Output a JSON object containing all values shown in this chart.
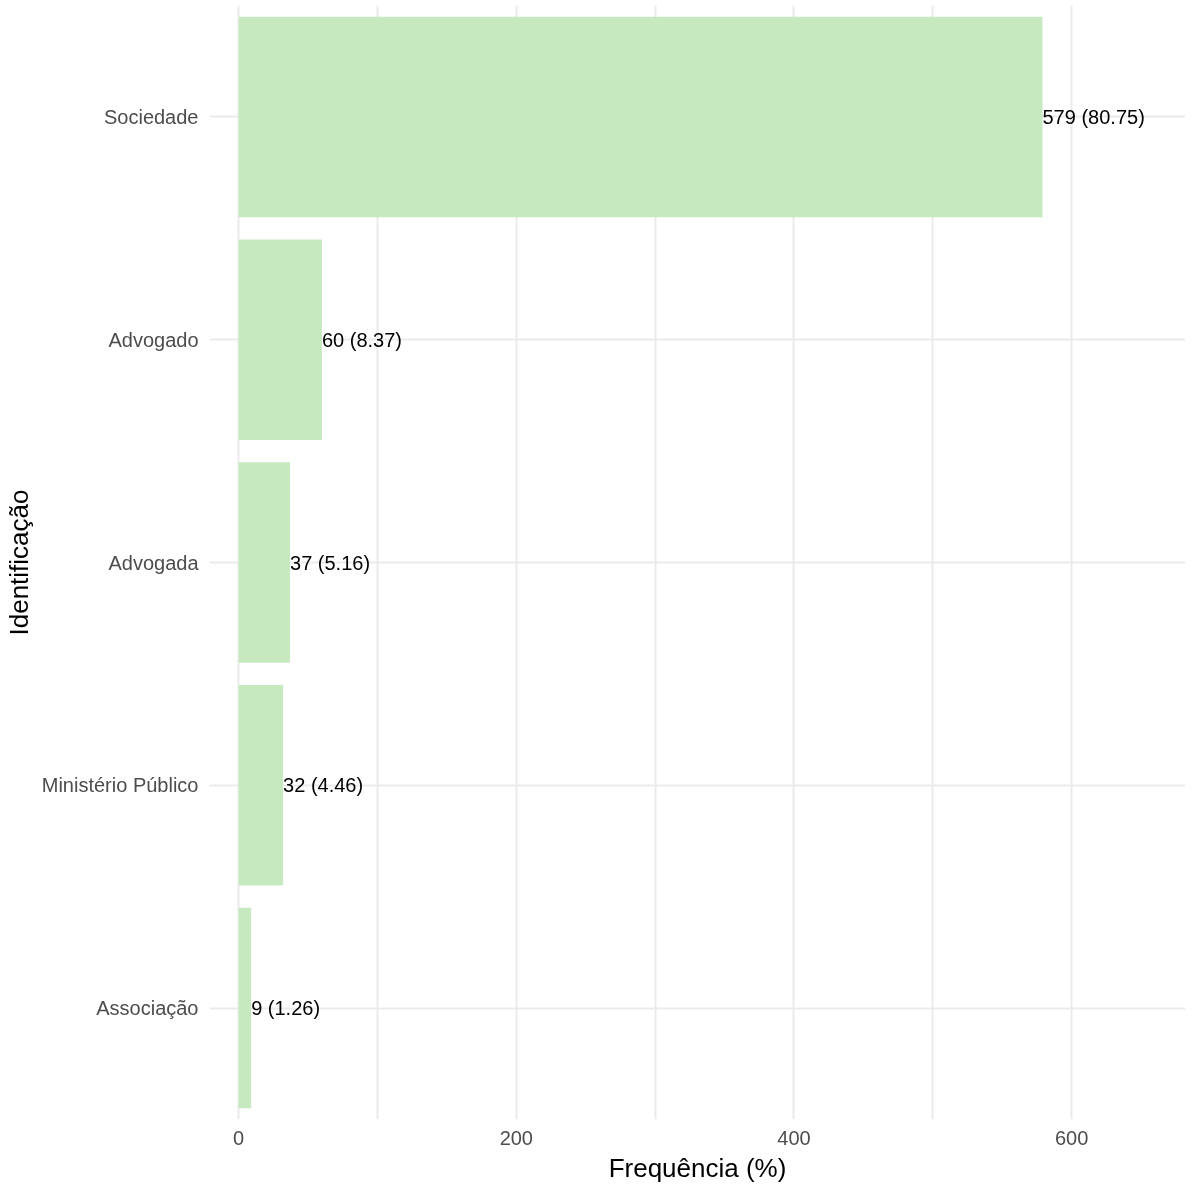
{
  "chart_data": {
    "type": "bar",
    "orientation": "horizontal",
    "xlabel": "Frequência (%)",
    "ylabel": "Identificação",
    "categories": [
      "Sociedade",
      "Advogado",
      "Advogada",
      "Ministério Público",
      "Associação"
    ],
    "values": [
      579,
      60,
      37,
      32,
      9
    ],
    "value_labels": [
      "579 (80.75)",
      "60 (8.37)",
      "37 (5.16)",
      "32 (4.46)",
      "9 (1.26)"
    ],
    "color": "#c7e9c0",
    "xlim": [
      -21,
      682
    ],
    "xticks": [
      0,
      {
        "value": 100,
        "label": null
      },
      200,
      {
        "value": 300,
        "label": null
      },
      400,
      {
        "value": 500,
        "label": null
      },
      600
    ],
    "grid": true
  }
}
